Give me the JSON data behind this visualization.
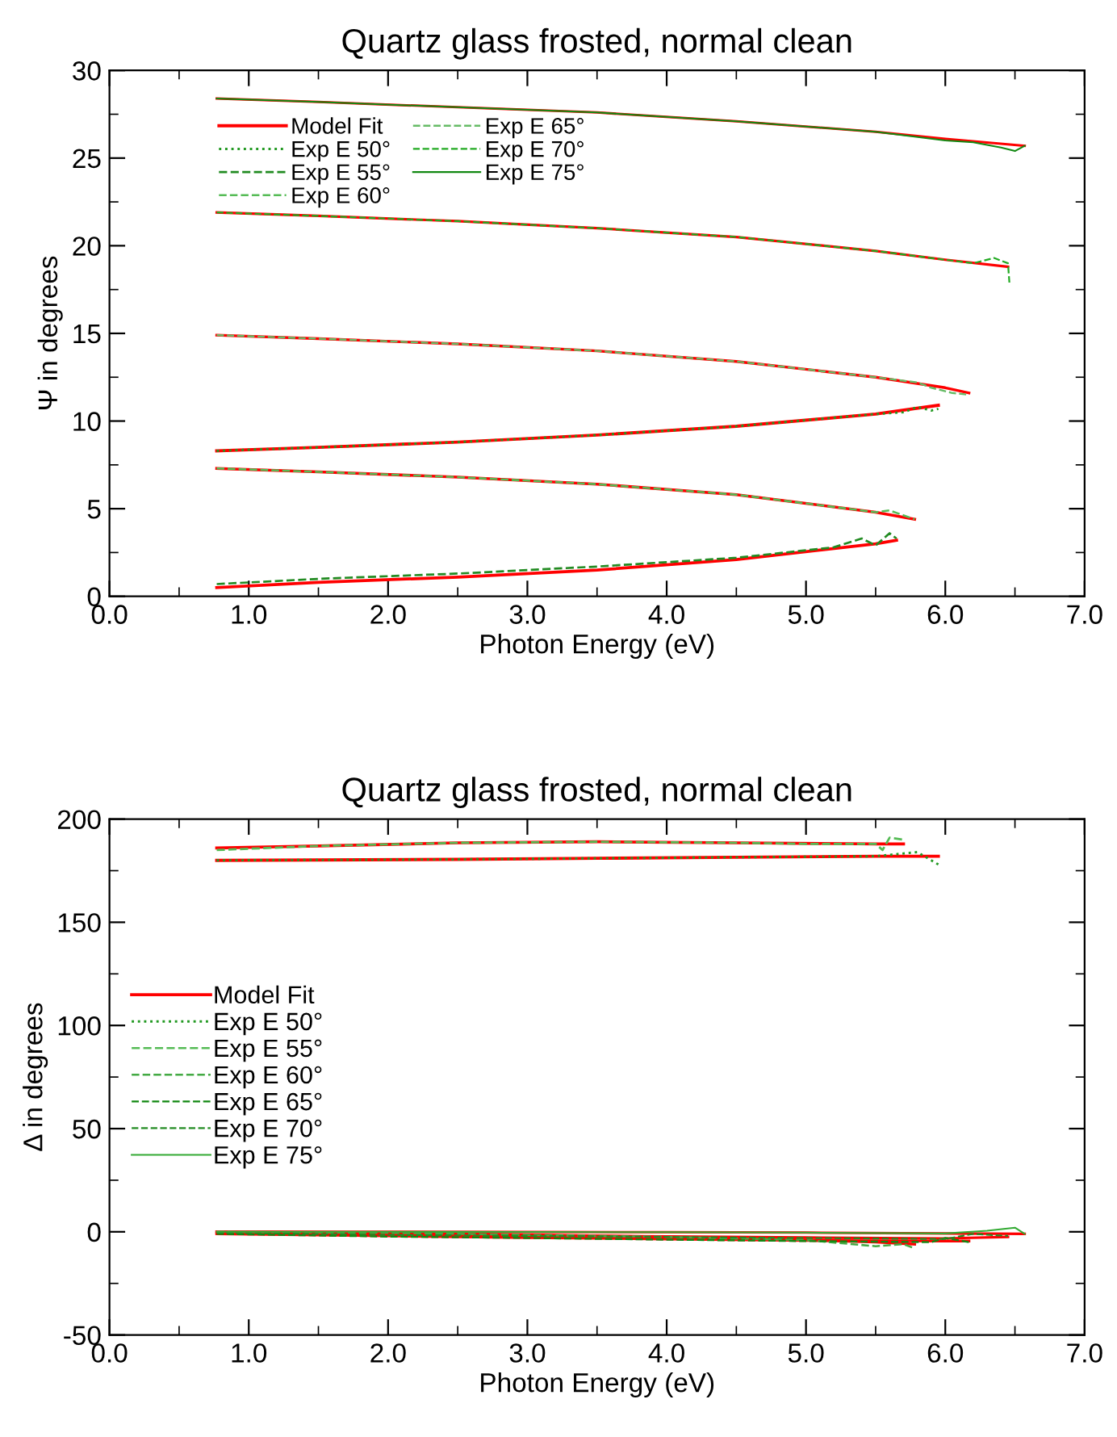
{
  "chart_data": [
    {
      "type": "line",
      "title": "Quartz glass frosted, normal clean",
      "xlabel": "Photon Energy (eV)",
      "ylabel": "Ψ in degrees",
      "xlim": [
        0,
        7
      ],
      "ylim": [
        0,
        30
      ],
      "xticks": [
        {
          "value": 0,
          "label": "0.0"
        },
        {
          "value": 1,
          "label": "1.0"
        },
        {
          "value": 2,
          "label": "2.0"
        },
        {
          "value": 3,
          "label": "3.0"
        },
        {
          "value": 4,
          "label": "4.0"
        },
        {
          "value": 5,
          "label": "5.0"
        },
        {
          "value": 6,
          "label": "6.0"
        },
        {
          "value": 7,
          "label": "7.0"
        }
      ],
      "yticks": [
        0,
        5,
        10,
        15,
        20,
        25,
        30
      ],
      "grid": false,
      "legend": "top left",
      "series": [
        {
          "name": "Model Fit",
          "color": "#ff0000",
          "line_style": "solid",
          "x": [
            0.77,
            1.5,
            2.5,
            3.5,
            4.5,
            5.5,
            5.95
          ],
          "values": [
            8.3,
            8.5,
            8.8,
            9.2,
            9.7,
            10.4,
            10.9
          ]
        },
        {
          "color": "#ff0000",
          "line_style": "solid",
          "x": [
            0.77,
            1.5,
            2.5,
            3.5,
            4.5,
            5.5,
            5.65
          ],
          "values": [
            0.5,
            0.8,
            1.1,
            1.5,
            2.1,
            3.0,
            3.2
          ]
        },
        {
          "color": "#ff0000",
          "line_style": "solid",
          "x": [
            0.77,
            1.5,
            2.5,
            3.5,
            4.5,
            5.5,
            5.78
          ],
          "values": [
            7.3,
            7.1,
            6.8,
            6.4,
            5.8,
            4.8,
            4.4
          ]
        },
        {
          "color": "#ff0000",
          "line_style": "solid",
          "x": [
            0.77,
            1.5,
            2.5,
            3.5,
            4.5,
            5.5,
            6.0,
            6.17
          ],
          "values": [
            14.9,
            14.7,
            14.4,
            14.0,
            13.4,
            12.5,
            11.9,
            11.6
          ]
        },
        {
          "color": "#ff0000",
          "line_style": "solid",
          "x": [
            0.77,
            1.5,
            2.5,
            3.5,
            4.5,
            5.5,
            6.0,
            6.45
          ],
          "values": [
            21.9,
            21.7,
            21.4,
            21.0,
            20.5,
            19.7,
            19.2,
            18.8
          ]
        },
        {
          "color": "#ff0000",
          "line_style": "solid",
          "x": [
            0.77,
            1.5,
            2.5,
            3.5,
            4.5,
            5.5,
            6.0,
            6.57
          ],
          "values": [
            28.4,
            28.2,
            27.9,
            27.6,
            27.1,
            26.5,
            26.1,
            25.7
          ]
        },
        {
          "name": "Exp E 50°",
          "color": "#229922",
          "line_style": "dotted",
          "x": [
            0.77,
            1.5,
            2.5,
            3.5,
            4.5,
            5.5,
            5.7,
            5.8,
            5.9,
            5.95
          ],
          "values": [
            8.3,
            8.5,
            8.8,
            9.2,
            9.7,
            10.4,
            10.5,
            10.8,
            10.6,
            10.7
          ]
        },
        {
          "name": "Exp E 55°",
          "color": "#228b22",
          "line_style": "dashed",
          "x": [
            0.77,
            1.5,
            2.5,
            3.5,
            4.5,
            5.2,
            5.4,
            5.5,
            5.6,
            5.65
          ],
          "values": [
            0.7,
            1.0,
            1.3,
            1.7,
            2.2,
            2.8,
            3.3,
            2.9,
            3.6,
            3.3
          ]
        },
        {
          "name": "Exp E 60°",
          "color": "#55bb55",
          "line_style": "dashed",
          "x": [
            0.77,
            1.5,
            2.5,
            3.5,
            4.5,
            5.5,
            5.6,
            5.78
          ],
          "values": [
            7.3,
            7.1,
            6.8,
            6.4,
            5.8,
            4.8,
            4.9,
            4.4
          ]
        },
        {
          "name": "Exp E 65°",
          "color": "#66bb66",
          "line_style": "dashed",
          "x": [
            0.77,
            1.5,
            2.5,
            3.5,
            4.5,
            5.5,
            5.8,
            5.9,
            6.05,
            6.17
          ],
          "values": [
            14.9,
            14.7,
            14.4,
            14.0,
            13.4,
            12.5,
            12.2,
            11.9,
            11.6,
            11.5
          ]
        },
        {
          "name": "Exp E 70°",
          "color": "#22aa22",
          "line_style": "dashed",
          "x": [
            0.77,
            1.5,
            2.5,
            3.5,
            4.5,
            5.5,
            6.0,
            6.2,
            6.35,
            6.45,
            6.46
          ],
          "values": [
            21.9,
            21.7,
            21.4,
            21.0,
            20.5,
            19.7,
            19.2,
            19.0,
            19.3,
            19.0,
            17.9
          ]
        },
        {
          "name": "Exp E 75°",
          "color": "#118811",
          "line_style": "solid",
          "x": [
            0.77,
            1.5,
            2.5,
            3.5,
            4.5,
            5.5,
            6.0,
            6.2,
            6.4,
            6.5,
            6.57
          ],
          "values": [
            28.4,
            28.2,
            27.9,
            27.6,
            27.1,
            26.5,
            26.0,
            25.9,
            25.6,
            25.4,
            25.7
          ]
        }
      ]
    },
    {
      "type": "line",
      "title": "Quartz glass frosted, normal clean",
      "xlabel": "Photon Energy (eV)",
      "ylabel": "Δ in degrees",
      "xlim": [
        0,
        7
      ],
      "ylim": [
        -50,
        200
      ],
      "xticks": [
        {
          "value": 0,
          "label": "0.0"
        },
        {
          "value": 1,
          "label": "1.0"
        },
        {
          "value": 2,
          "label": "2.0"
        },
        {
          "value": 3,
          "label": "3.0"
        },
        {
          "value": 4,
          "label": "4.0"
        },
        {
          "value": 5,
          "label": "5.0"
        },
        {
          "value": 6,
          "label": "6.0"
        },
        {
          "value": 7,
          "label": "7.0"
        }
      ],
      "yticks": [
        -50,
        0,
        50,
        100,
        150,
        200
      ],
      "grid": false,
      "legend": "center left",
      "series": [
        {
          "name": "Model Fit",
          "color": "#ff0000",
          "line_style": "solid",
          "x": [
            0.77,
            1.5,
            2.5,
            3.5,
            4.5,
            5.5,
            5.95
          ],
          "values": [
            180,
            180.2,
            180.5,
            181,
            181.5,
            182,
            182
          ]
        },
        {
          "color": "#ff0000",
          "line_style": "solid",
          "x": [
            0.77,
            1.5,
            2.5,
            3.5,
            4.5,
            5.5,
            5.7
          ],
          "values": [
            186,
            187,
            188.5,
            189,
            188.5,
            188,
            188
          ]
        },
        {
          "color": "#ff0000",
          "line_style": "solid",
          "x": [
            0.77,
            2,
            3,
            4,
            5,
            5.5,
            5.78
          ],
          "values": [
            0,
            -0.5,
            -1.5,
            -2.5,
            -4,
            -5,
            -6
          ]
        },
        {
          "color": "#ff0000",
          "line_style": "solid",
          "x": [
            0.77,
            2,
            3,
            4,
            5,
            6,
            6.17
          ],
          "values": [
            -1,
            -2,
            -2.8,
            -3.5,
            -4.2,
            -4.5,
            -4.5
          ]
        },
        {
          "color": "#ff0000",
          "line_style": "solid",
          "x": [
            0.77,
            2,
            3,
            4,
            5,
            6,
            6.45
          ],
          "values": [
            -0.5,
            -1.2,
            -1.8,
            -2.3,
            -2.8,
            -3.2,
            -2.5
          ]
        },
        {
          "color": "#ff0000",
          "line_style": "solid",
          "x": [
            0.77,
            2,
            3,
            4,
            5,
            6,
            6.57
          ],
          "values": [
            0,
            0,
            -0.1,
            -0.2,
            -0.4,
            -0.8,
            -1
          ]
        },
        {
          "name": "Exp E 50°",
          "color": "#229922",
          "line_style": "dotted",
          "x": [
            0.77,
            1.5,
            2.5,
            3.5,
            4.5,
            5.5,
            5.8,
            5.9,
            5.95
          ],
          "values": [
            180,
            180.2,
            180.5,
            181,
            181.5,
            182,
            184,
            180,
            178
          ]
        },
        {
          "name": "Exp E 55°",
          "color": "#55bb55",
          "line_style": "dashed",
          "x": [
            0.77,
            1.5,
            2.5,
            3.5,
            4.5,
            5.0,
            5.5,
            5.55,
            5.6,
            5.7
          ],
          "values": [
            185,
            187,
            188.5,
            189,
            188.5,
            188,
            188,
            185,
            191,
            190
          ]
        },
        {
          "name": "Exp E 60°",
          "color": "#44aa44",
          "line_style": "dashed",
          "x": [
            0.77,
            2,
            3,
            4,
            5,
            5.5,
            5.7,
            5.78
          ],
          "values": [
            0,
            -0.5,
            -1.5,
            -2.5,
            -4,
            -7,
            -6,
            -8
          ]
        },
        {
          "name": "Exp E 65°",
          "color": "#118811",
          "line_style": "dashed",
          "x": [
            0.77,
            2,
            3,
            4,
            5,
            5.9,
            6.0,
            6.17
          ],
          "values": [
            -1,
            -2.3,
            -3,
            -3.8,
            -4.5,
            -5,
            -3,
            -5
          ]
        },
        {
          "name": "Exp E 70°",
          "color": "#228b22",
          "line_style": "dashed",
          "x": [
            0.77,
            2,
            3,
            4,
            5,
            6,
            6.2,
            6.45
          ],
          "values": [
            -0.5,
            -1.5,
            -2,
            -2.5,
            -3,
            -3.5,
            -1,
            -2
          ]
        },
        {
          "name": "Exp E 75°",
          "color": "#33aa33",
          "line_style": "solid",
          "x": [
            0.77,
            2,
            3,
            4,
            5,
            6,
            6.3,
            6.5,
            6.57
          ],
          "values": [
            0,
            0,
            -0.1,
            -0.2,
            -0.4,
            -0.8,
            0.5,
            2,
            -1
          ]
        }
      ]
    }
  ]
}
